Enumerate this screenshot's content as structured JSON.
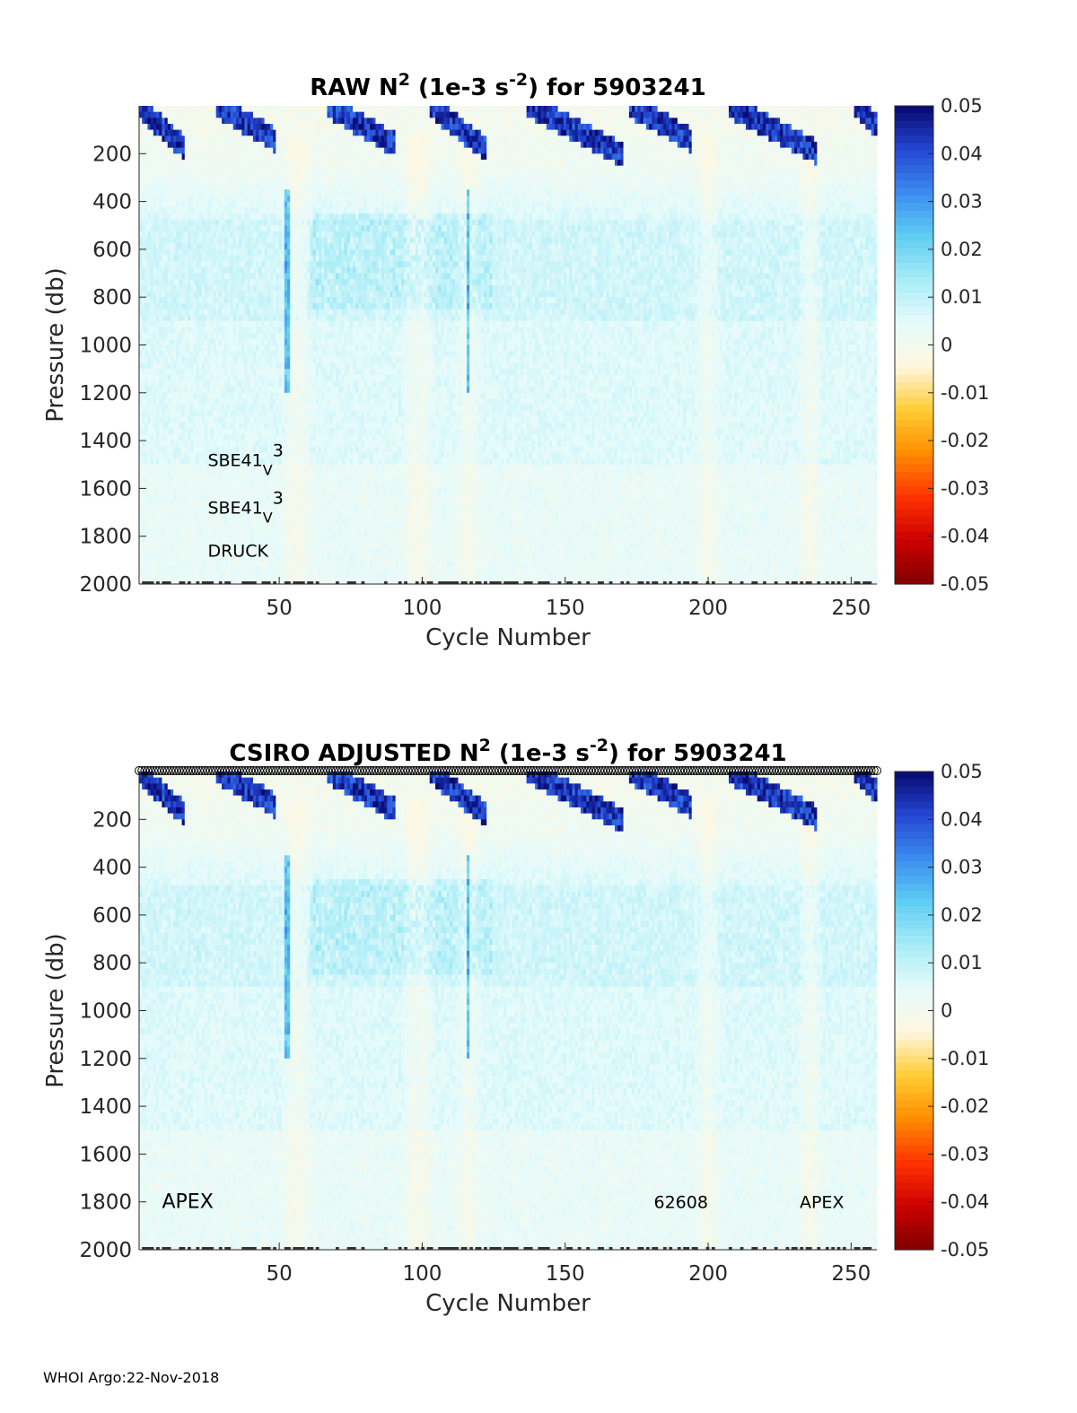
{
  "footer": "WHOI Argo:22-Nov-2018",
  "colormap": [
    "#7f0000",
    "#cc0000",
    "#ff3300",
    "#ff8c00",
    "#ffcc33",
    "#fff7e0",
    "#e6fbfb",
    "#a8ecf7",
    "#5fcdf2",
    "#3c8cf0",
    "#2446d2",
    "#08086e"
  ],
  "chart_data": [
    {
      "type": "heatmap",
      "title": {
        "pre": "RAW N",
        "sup1": "2",
        "mid": " (1e-3 s",
        "sup2": "-2",
        "post": ") for 5903241"
      },
      "xlabel": "Cycle Number",
      "ylabel": "Pressure (db)",
      "xlim": [
        1,
        259
      ],
      "ylim": [
        0,
        2000
      ],
      "xticks": [
        50,
        100,
        150,
        200,
        250
      ],
      "yticks": [
        200,
        400,
        600,
        800,
        1000,
        1200,
        1400,
        1600,
        1800,
        2000
      ],
      "colorbar": {
        "range": [
          -0.05,
          0.05
        ],
        "ticks": [
          "0.05",
          "0.04",
          "0.03",
          "0.02",
          "0.01",
          "0",
          "-0.01",
          "-0.02",
          "-0.03",
          "-0.04",
          "-0.05"
        ]
      },
      "surface_markers": false,
      "annotations": [
        {
          "id": "sensor-1",
          "base": "SBE41",
          "sub": "V",
          "tail": "3",
          "cycle": 25,
          "pressure": 1480,
          "size": "small"
        },
        {
          "id": "sensor-2",
          "base": "SBE41",
          "sub": "V",
          "tail": "3",
          "cycle": 25,
          "pressure": 1680,
          "size": "small"
        },
        {
          "id": "pressure-sensor",
          "text": "DRUCK",
          "cycle": 25,
          "pressure": 1860,
          "size": "small"
        }
      ],
      "features": {
        "pycnocline_events": [
          {
            "start": 1,
            "end": 16,
            "top": 20,
            "bottom": 180
          },
          {
            "start": 28,
            "end": 48,
            "top": 10,
            "bottom": 150
          },
          {
            "start": 67,
            "end": 90,
            "top": 10,
            "bottom": 170
          },
          {
            "start": 103,
            "end": 122,
            "top": 10,
            "bottom": 190
          },
          {
            "start": 137,
            "end": 170,
            "top": 10,
            "bottom": 210
          },
          {
            "start": 173,
            "end": 194,
            "top": 10,
            "bottom": 150
          },
          {
            "start": 208,
            "end": 238,
            "top": 10,
            "bottom": 200
          },
          {
            "start": 252,
            "end": 259,
            "top": 10,
            "bottom": 90
          }
        ],
        "mixed_cycles": [
          55,
          57,
          97,
          100,
          116,
          200,
          236
        ],
        "anomaly_columns": [
          52,
          53,
          116
        ]
      }
    },
    {
      "type": "heatmap",
      "title": {
        "pre": "CSIRO  ADJUSTED N",
        "sup1": "2",
        "mid": " (1e-3 s",
        "sup2": "-2",
        "post": ") for 5903241"
      },
      "xlabel": "Cycle Number",
      "ylabel": "Pressure (db)",
      "xlim": [
        1,
        259
      ],
      "ylim": [
        0,
        2000
      ],
      "xticks": [
        50,
        100,
        150,
        200,
        250
      ],
      "yticks": [
        200,
        400,
        600,
        800,
        1000,
        1200,
        1400,
        1600,
        1800,
        2000
      ],
      "colorbar": {
        "range": [
          -0.05,
          0.05
        ],
        "ticks": [
          "0.05",
          "0.04",
          "0.03",
          "0.02",
          "0.01",
          "0",
          "-0.01",
          "-0.02",
          "-0.03",
          "-0.04",
          "-0.05"
        ]
      },
      "surface_markers": true,
      "annotations": [
        {
          "id": "platform-left",
          "text": "APEX",
          "cycle": 9,
          "pressure": 1800,
          "size": "big"
        },
        {
          "id": "wmo-inst",
          "text": "62608",
          "cycle": 181,
          "pressure": 1800,
          "size": "small"
        },
        {
          "id": "platform-right",
          "text": "APEX",
          "cycle": 232,
          "pressure": 1800,
          "size": "small"
        }
      ],
      "features": {
        "pycnocline_events": [
          {
            "start": 1,
            "end": 16,
            "top": 20,
            "bottom": 180
          },
          {
            "start": 28,
            "end": 48,
            "top": 10,
            "bottom": 150
          },
          {
            "start": 67,
            "end": 90,
            "top": 10,
            "bottom": 170
          },
          {
            "start": 103,
            "end": 122,
            "top": 10,
            "bottom": 190
          },
          {
            "start": 137,
            "end": 170,
            "top": 10,
            "bottom": 210
          },
          {
            "start": 173,
            "end": 194,
            "top": 10,
            "bottom": 150
          },
          {
            "start": 208,
            "end": 238,
            "top": 10,
            "bottom": 200
          },
          {
            "start": 252,
            "end": 259,
            "top": 10,
            "bottom": 90
          }
        ],
        "mixed_cycles": [
          55,
          57,
          97,
          100,
          116,
          200,
          236
        ],
        "anomaly_columns": [
          52,
          53,
          116
        ]
      }
    }
  ]
}
